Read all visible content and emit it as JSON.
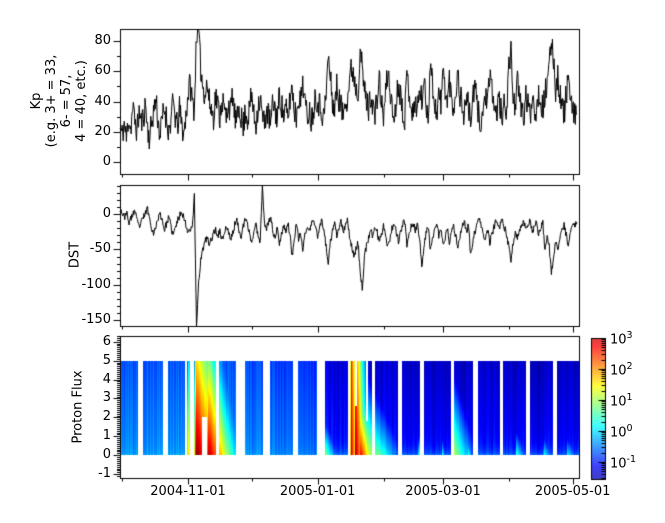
{
  "figure": {
    "background": "#ffffff",
    "foreground": "#000000"
  },
  "x_axis": {
    "start_date": "2004-09-30",
    "total_days": 216,
    "tick_labels": [
      {
        "label": "2004-11-01",
        "day": 32
      },
      {
        "label": "2005-01-01",
        "day": 93
      },
      {
        "label": "2005-03-01",
        "day": 152
      },
      {
        "label": "2005-05-01",
        "day": 213
      }
    ],
    "minor_tick_days": [
      1,
      62,
      124,
      183
    ]
  },
  "chart_data": [
    {
      "id": "kp",
      "type": "line",
      "ylabel_lines": [
        "Kp",
        "(e.g. 3+ = 33,",
        "6- = 57,",
        "4 = 40, etc.)"
      ],
      "ylim": [
        -8,
        88
      ],
      "yticks": [
        80,
        60,
        40,
        20,
        0
      ],
      "y_minor_step": 10,
      "line_color": "#000000",
      "noise_amp": 9,
      "subsamples_per_day": 4,
      "seed": 11,
      "daily_values": [
        22,
        18,
        25,
        15,
        30,
        22,
        35,
        28,
        20,
        33,
        26,
        30,
        38,
        22,
        15,
        28,
        35,
        42,
        25,
        18,
        30,
        35,
        28,
        20,
        28,
        40,
        30,
        22,
        35,
        25,
        18,
        30,
        45,
        52,
        40,
        35,
        87,
        85,
        62,
        50,
        45,
        52,
        40,
        35,
        30,
        44,
        38,
        30,
        42,
        35,
        28,
        40,
        33,
        45,
        30,
        25,
        38,
        30,
        22,
        35,
        28,
        35,
        45,
        30,
        25,
        38,
        42,
        30,
        25,
        35,
        30,
        25,
        40,
        35,
        28,
        45,
        38,
        30,
        35,
        28,
        42,
        50,
        35,
        30,
        45,
        38,
        55,
        40,
        30,
        35,
        28,
        35,
        45,
        40,
        38,
        33,
        30,
        45,
        70,
        55,
        40,
        35,
        50,
        42,
        38,
        30,
        45,
        40,
        55,
        62,
        58,
        50,
        45,
        78,
        60,
        48,
        40,
        35,
        45,
        38,
        30,
        42,
        55,
        38,
        30,
        45,
        60,
        50,
        35,
        28,
        40,
        52,
        45,
        35,
        30,
        58,
        48,
        38,
        30,
        42,
        35,
        48,
        40,
        55,
        38,
        30,
        67,
        52,
        40,
        32,
        45,
        38,
        60,
        50,
        38,
        55,
        42,
        35,
        48,
        58,
        45,
        38,
        30,
        45,
        35,
        28,
        40,
        50,
        38,
        30,
        25,
        35,
        45,
        38,
        55,
        48,
        38,
        30,
        42,
        35,
        28,
        40,
        35,
        65,
        71,
        45,
        38,
        52,
        42,
        35,
        30,
        42,
        38,
        30,
        45,
        38,
        32,
        48,
        40,
        35,
        45,
        50,
        62,
        80,
        70,
        48,
        57,
        45,
        38,
        32,
        45,
        57,
        40,
        30,
        35,
        28
      ]
    },
    {
      "id": "dst",
      "type": "line",
      "ylabel_lines": [
        "DST"
      ],
      "ylim": [
        -158,
        41
      ],
      "yticks": [
        0,
        -50,
        -100,
        -150
      ],
      "y_minor_step": 10,
      "line_color": "#000000",
      "noise_amp": 5,
      "subsamples_per_day": 4,
      "seed": 23,
      "daily_values": [
        8,
        2,
        -5,
        3,
        -12,
        -8,
        0,
        5,
        -10,
        -18,
        -12,
        -5,
        2,
        8,
        -8,
        -20,
        -28,
        -15,
        -5,
        0,
        -10,
        -22,
        -12,
        -5,
        -18,
        -30,
        -20,
        -10,
        -3,
        5,
        -5,
        -15,
        -25,
        -20,
        -18,
        25,
        -160,
        -95,
        -65,
        -50,
        -40,
        -32,
        -45,
        -35,
        -28,
        -22,
        -30,
        -25,
        -35,
        -28,
        -18,
        -25,
        -35,
        -28,
        -15,
        -10,
        -22,
        -30,
        -18,
        -8,
        -15,
        -28,
        -40,
        -25,
        -15,
        -30,
        -38,
        42,
        -12,
        -20,
        -10,
        -5,
        -25,
        -35,
        -20,
        -40,
        -28,
        -15,
        -25,
        -12,
        -30,
        -60,
        -35,
        -15,
        -35,
        -28,
        -50,
        -30,
        -18,
        -25,
        -15,
        -8,
        -20,
        -30,
        -15,
        -10,
        -25,
        -45,
        -70,
        -40,
        -25,
        -15,
        -30,
        -20,
        -12,
        -25,
        -18,
        -10,
        -30,
        -45,
        -60,
        -50,
        -40,
        -80,
        -105,
        -60,
        -45,
        -35,
        -25,
        -30,
        -18,
        -25,
        -40,
        -28,
        -15,
        -30,
        -45,
        -35,
        -20,
        -12,
        -25,
        -38,
        -28,
        -15,
        -10,
        -42,
        -30,
        -18,
        -10,
        -25,
        -15,
        -35,
        -75,
        -45,
        -28,
        -18,
        -48,
        -35,
        -22,
        -12,
        -30,
        -20,
        -45,
        -35,
        -20,
        -40,
        -28,
        -15,
        -32,
        -45,
        -30,
        -18,
        -10,
        -25,
        -15,
        -60,
        -40,
        -25,
        -15,
        -8,
        -18,
        -28,
        -35,
        -22,
        -40,
        -30,
        -18,
        -10,
        -22,
        -15,
        -8,
        -20,
        -30,
        -48,
        -65,
        -40,
        -25,
        -35,
        -25,
        -15,
        -10,
        -20,
        -15,
        -8,
        -25,
        -18,
        -10,
        -30,
        -20,
        -12,
        -55,
        -35,
        -45,
        -85,
        -60,
        -40,
        -50,
        -35,
        -25,
        -15,
        -30,
        -45,
        -25,
        -12,
        -18,
        -10
      ]
    },
    {
      "id": "proton_flux",
      "type": "heatmap",
      "ylabel_lines": [
        "Proton Flux"
      ],
      "ylim": [
        -1.2,
        6.3
      ],
      "yticks": [
        6,
        5,
        4,
        3,
        2,
        1,
        0,
        -1
      ],
      "y_minor_step": 0.1,
      "band_y": [
        0,
        5
      ],
      "color_log_min": -1.55,
      "color_log_max": 3,
      "colormap": "jet",
      "stripe_noise": 0.16,
      "seed": 5,
      "vertical_fade_per_unit": 0.06,
      "bottom_edge_boost": {
        "dark": 0.5,
        "light": 0.12,
        "scale_y": 0.35
      },
      "background_log_keypoints": [
        [
          0,
          -0.38
        ],
        [
          8,
          -0.42
        ],
        [
          11,
          -0.4
        ],
        [
          20,
          -0.42
        ],
        [
          23,
          -0.4
        ],
        [
          31,
          -0.36
        ],
        [
          35,
          -0.3
        ],
        [
          47,
          -0.3
        ],
        [
          55,
          -0.45
        ],
        [
          59,
          -0.42
        ],
        [
          67,
          -0.45
        ],
        [
          70,
          -0.5
        ],
        [
          81,
          -0.55
        ],
        [
          84,
          -0.5
        ],
        [
          93,
          -0.6
        ],
        [
          96,
          -0.9
        ],
        [
          100,
          -1.02
        ],
        [
          108,
          -1.05
        ],
        [
          120,
          -1.05
        ],
        [
          150,
          -1.1
        ],
        [
          215,
          -1.12
        ]
      ],
      "segments_days": [
        [
          0,
          8.3
        ],
        [
          10.6,
          20.2
        ],
        [
          22.4,
          30.8
        ],
        [
          31.4,
          33.0
        ],
        [
          34.8,
          45.2
        ],
        [
          46.4,
          54.8
        ],
        [
          58.9,
          67.2
        ],
        [
          70.4,
          81.2
        ],
        [
          83.8,
          92.6
        ],
        [
          96.4,
          107.2
        ],
        [
          108.4,
          118.6
        ],
        [
          119.8,
          130.6
        ],
        [
          132.8,
          141.4
        ],
        [
          143.2,
          155.8
        ],
        [
          157.0,
          166.2
        ],
        [
          168.4,
          178.8
        ],
        [
          180.2,
          191.0
        ],
        [
          192.8,
          203.6
        ],
        [
          205.6,
          215.8
        ]
      ],
      "partial_gaps": [
        {
          "days": [
            38.8,
            41.0
          ],
          "white_below": 2.0
        },
        {
          "days": [
            110.7,
            111.5
          ],
          "white_above": 2.6
        },
        {
          "days": [
            115.8,
            116.6
          ],
          "white_above": 1.8
        }
      ],
      "events": [
        {
          "day": 32.0,
          "peak_log": 1.8,
          "rise_days": 0.6,
          "decay_days": 1.6,
          "v_slope": 0.3
        },
        {
          "day": 35.8,
          "peak_log": 3.35,
          "rise_days": 0.9,
          "decay_days": 5.5,
          "v_slope": 0.34
        },
        {
          "day": 41.6,
          "peak_log": 3.2,
          "rise_days": 0.5,
          "decay_days": 4.0,
          "v_slope": 0.46
        },
        {
          "day": 46.6,
          "peak_log": 0.85,
          "rise_days": 1.5,
          "decay_days": 5.0,
          "v_slope": 0.22
        },
        {
          "day": 96.8,
          "peak_log": 0.9,
          "rise_days": 1.5,
          "decay_days": 3.0,
          "v_slope": 1.1
        },
        {
          "day": 108.7,
          "peak_log": 3.25,
          "rise_days": 0.4,
          "decay_days": 1.1,
          "v_slope": 0.1
        },
        {
          "day": 110.8,
          "peak_log": 3.3,
          "rise_days": 0.3,
          "decay_days": 1.6,
          "v_slope": 0.18
        },
        {
          "day": 113.2,
          "peak_log": 2.9,
          "rise_days": 0.5,
          "decay_days": 2.2,
          "v_slope": 0.75
        },
        {
          "day": 115.5,
          "peak_log": 1.5,
          "rise_days": 1.0,
          "decay_days": 7.0,
          "v_slope": 0.6
        },
        {
          "day": 121.0,
          "peak_log": 0.9,
          "rise_days": 1.0,
          "decay_days": 6.0,
          "v_slope": 0.8
        },
        {
          "day": 140.6,
          "peak_log": 0.65,
          "rise_days": 0.6,
          "decay_days": 1.8,
          "v_slope": 1.5
        },
        {
          "day": 151.6,
          "peak_log": 0.45,
          "rise_days": 0.5,
          "decay_days": 1.2,
          "v_slope": 1.8
        },
        {
          "day": 157.2,
          "peak_log": 1.1,
          "rise_days": 1.2,
          "decay_days": 5.0,
          "v_slope": 0.55
        },
        {
          "day": 163.8,
          "peak_log": 0.5,
          "rise_days": 0.5,
          "decay_days": 1.5,
          "v_slope": 1.6
        },
        {
          "day": 186.5,
          "peak_log": 0.5,
          "rise_days": 1.0,
          "decay_days": 3.0,
          "v_slope": 1.3
        },
        {
          "day": 199.5,
          "peak_log": 0.3,
          "rise_days": 1.0,
          "decay_days": 3.0,
          "v_slope": 1.5
        },
        {
          "day": 210.5,
          "peak_log": 0.2,
          "rise_days": 1.0,
          "decay_days": 4.0,
          "v_slope": 1.5
        }
      ]
    }
  ],
  "colorbar": {
    "base": "10",
    "tick_exponents": [
      3,
      2,
      1,
      0,
      -1
    ]
  }
}
